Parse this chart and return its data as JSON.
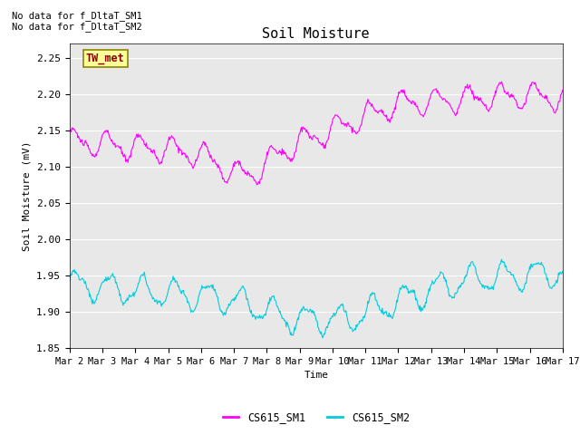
{
  "title": "Soil Moisture",
  "ylabel": "Soil Moisture (mV)",
  "xlabel": "Time",
  "ylim": [
    1.85,
    2.27
  ],
  "yticks": [
    1.85,
    1.9,
    1.95,
    2.0,
    2.05,
    2.1,
    2.15,
    2.2,
    2.25
  ],
  "xtick_labels": [
    "Mar 2",
    "Mar 3",
    "Mar 4",
    "Mar 5",
    "Mar 6",
    "Mar 7",
    "Mar 8",
    "Mar 9",
    "Mar 10",
    "Mar 11",
    "Mar 12",
    "Mar 13",
    "Mar 14",
    "Mar 15",
    "Mar 16",
    "Mar 17"
  ],
  "color_sm1": "#FF00FF",
  "color_sm2": "#00CCDD",
  "legend_labels": [
    "CS615_SM1",
    "CS615_SM2"
  ],
  "no_data_text1": "No data for f_DltaT_SM1",
  "no_data_text2": "No data for f_DltaT_SM2",
  "tw_met_label": "TW_met",
  "bg_color": "#E8E8E8",
  "fig_bg_color": "#FFFFFF"
}
